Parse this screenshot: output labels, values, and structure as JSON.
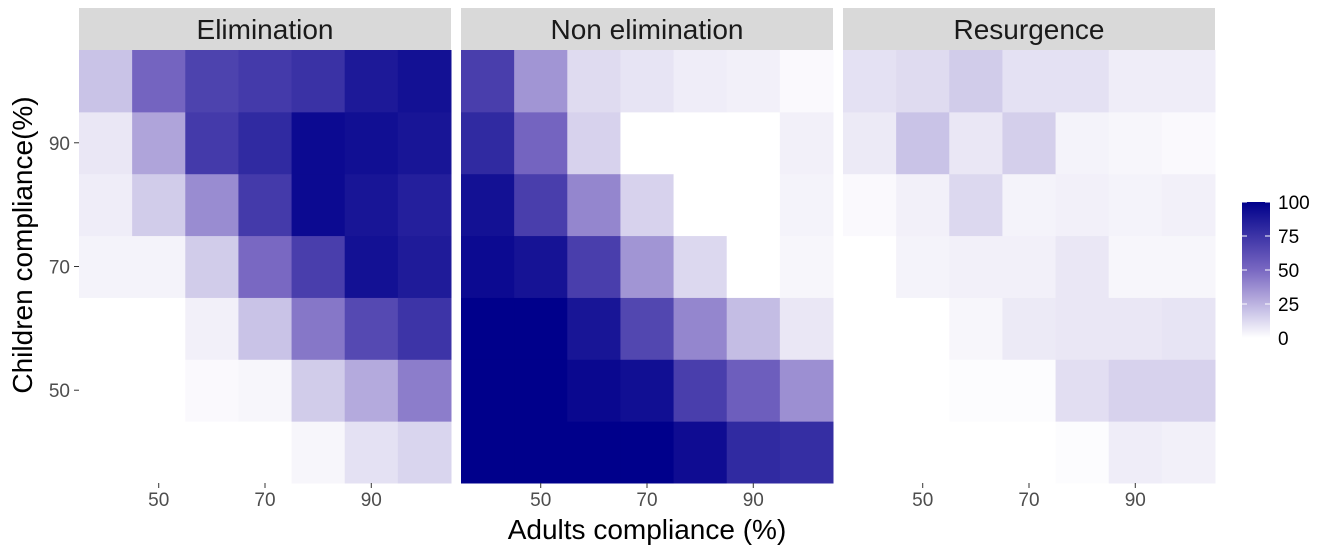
{
  "chart_data": {
    "type": "heatmap",
    "title": "",
    "xlabel": "Adults compliance (%)",
    "ylabel": "Children compliance(%)",
    "x": [
      40,
      50,
      60,
      70,
      80,
      90,
      100
    ],
    "y": [
      40,
      50,
      60,
      70,
      80,
      90,
      100
    ],
    "x_ticks": [
      50,
      70,
      90
    ],
    "y_ticks": [
      50,
      70,
      90
    ],
    "xlim": [
      35,
      105
    ],
    "ylim": [
      35,
      105
    ],
    "grid": true,
    "legend": {
      "position": "right",
      "min": 0,
      "max": 100,
      "breaks": [
        100,
        75,
        50,
        25,
        0
      ]
    },
    "colors": {
      "low": "#ffffff",
      "high": "#00008b",
      "panel_bg": "#ebebeb",
      "strip_bg": "#d9d9d9",
      "grid": "#ffffff"
    },
    "facets": [
      {
        "name": "Elimination",
        "values": [
          [
            0,
            0,
            0,
            0,
            3,
            10,
            14
          ],
          [
            0,
            0,
            2,
            3,
            17,
            28,
            43
          ],
          [
            0,
            0,
            5,
            20,
            45,
            65,
            75
          ],
          [
            4,
            4,
            17,
            50,
            70,
            92,
            87
          ],
          [
            6,
            17,
            38,
            72,
            95,
            90,
            85
          ],
          [
            8,
            30,
            72,
            80,
            95,
            93,
            90
          ],
          [
            20,
            52,
            68,
            72,
            76,
            88,
            92
          ]
        ]
      },
      {
        "name": "Non elimination",
        "values": [
          [
            100,
            100,
            100,
            100,
            94,
            80,
            78
          ],
          [
            100,
            100,
            96,
            93,
            70,
            55,
            37
          ],
          [
            100,
            100,
            90,
            66,
            40,
            22,
            8
          ],
          [
            95,
            91,
            70,
            35,
            13,
            0,
            3
          ],
          [
            92,
            70,
            40,
            15,
            0,
            0,
            4
          ],
          [
            80,
            52,
            15,
            0,
            0,
            0,
            5
          ],
          [
            70,
            35,
            12,
            9,
            6,
            5,
            2
          ]
        ]
      },
      {
        "name": "Resurgence",
        "values": [
          [
            0,
            0,
            0,
            0,
            1,
            6,
            5
          ],
          [
            0,
            0,
            1,
            1,
            11,
            15,
            15
          ],
          [
            0,
            0,
            3,
            7,
            8,
            8,
            9
          ],
          [
            0,
            4,
            5,
            5,
            8,
            3,
            3
          ],
          [
            2,
            5,
            13,
            4,
            5,
            4,
            5
          ],
          [
            7,
            20,
            8,
            16,
            4,
            3,
            2
          ],
          [
            10,
            12,
            17,
            10,
            10,
            6,
            6
          ]
        ]
      }
    ]
  }
}
